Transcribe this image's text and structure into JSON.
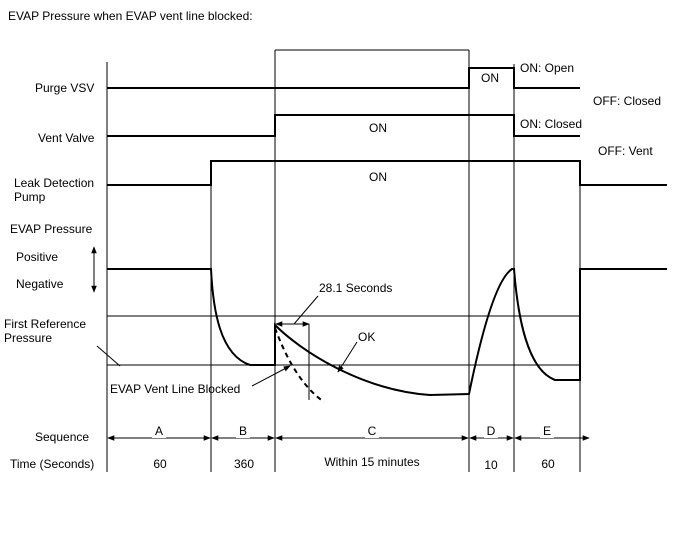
{
  "title": "EVAP Pressure when EVAP vent line blocked:",
  "rows": {
    "purge_vsv": "Purge VSV",
    "vent_valve": "Vent Valve",
    "leak_pump_line1": "Leak Detection",
    "leak_pump_line2": "Pump",
    "evap_pressure": "EVAP Pressure",
    "positive": "Positive",
    "negative": "Negative",
    "first_ref_line1": "First Reference",
    "first_ref_line2": "Pressure"
  },
  "signal_labels": {
    "purge_on": "ON",
    "purge_state_on": "ON: Open",
    "purge_state_off": "OFF: Closed",
    "vent_on": "ON",
    "vent_state_on": "ON: Closed",
    "vent_state_off": "OFF: Vent",
    "pump_on": "ON"
  },
  "annotations": {
    "seconds": "28.1 Seconds",
    "ok": "OK",
    "blocked": "EVAP Vent Line Blocked"
  },
  "sequence": {
    "label": "Sequence",
    "phases": [
      "A",
      "B",
      "C",
      "D",
      "E"
    ]
  },
  "time": {
    "label": "Time (Seconds)",
    "values": [
      "60",
      "360",
      "Within 15 minutes",
      "10",
      "60"
    ]
  }
}
